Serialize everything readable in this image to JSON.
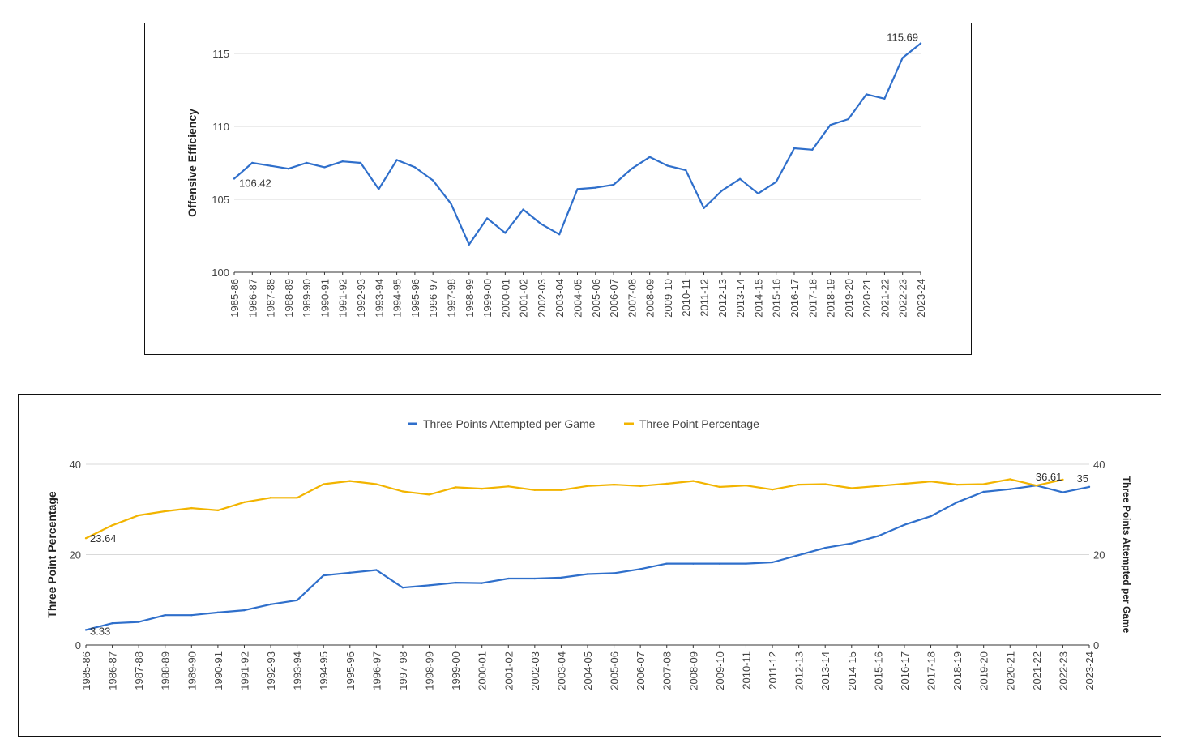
{
  "chart_data": [
    {
      "type": "line",
      "title": "",
      "xlabel": "",
      "ylabel": "Offensive Efficiency",
      "ylim": [
        100,
        115
      ],
      "yticks": [
        100,
        105,
        110,
        115
      ],
      "grid": true,
      "legend": "none",
      "categories": [
        "1985-86",
        "1986-87",
        "1987-88",
        "1988-89",
        "1989-90",
        "1990-91",
        "1991-92",
        "1992-93",
        "1993-94",
        "1994-95",
        "1995-96",
        "1996-97",
        "1997-98",
        "1998-99",
        "1999-00",
        "2000-01",
        "2001-02",
        "2002-03",
        "2003-04",
        "2004-05",
        "2005-06",
        "2006-07",
        "2007-08",
        "2008-09",
        "2009-10",
        "2010-11",
        "2011-12",
        "2012-13",
        "2013-14",
        "2014-15",
        "2015-16",
        "2016-17",
        "2017-18",
        "2018-19",
        "2019-20",
        "2020-21",
        "2021-22",
        "2022-23",
        "2023-24"
      ],
      "series": [
        {
          "color": "#2f6fcb",
          "values": [
            106.42,
            107.5,
            107.3,
            107.1,
            107.5,
            107.2,
            107.6,
            107.5,
            105.7,
            107.7,
            107.2,
            106.3,
            104.7,
            101.9,
            103.7,
            102.7,
            104.3,
            103.3,
            102.6,
            105.7,
            105.8,
            106.0,
            107.1,
            107.9,
            107.3,
            107.0,
            104.4,
            105.6,
            106.4,
            105.4,
            106.2,
            108.5,
            108.4,
            110.1,
            110.5,
            112.2,
            111.9,
            114.7,
            115.69
          ]
        }
      ],
      "data_labels": [
        "106.42",
        "115.69"
      ]
    },
    {
      "type": "line",
      "title": "",
      "xlabel": "",
      "ylabel_left": "Three Point Percentage",
      "ylabel_right": "Three Points Attempted per Game",
      "ylim_left": [
        0,
        40
      ],
      "ylim_right": [
        0,
        40
      ],
      "yticks": [
        0,
        20,
        40
      ],
      "grid": true,
      "legend": "top",
      "categories": [
        "1985-86",
        "1986-87",
        "1987-88",
        "1988-89",
        "1989-90",
        "1990-91",
        "1991-92",
        "1992-93",
        "1993-94",
        "1994-95",
        "1995-96",
        "1996-97",
        "1997-98",
        "1998-99",
        "1999-00",
        "2000-01",
        "2001-02",
        "2002-03",
        "2003-04",
        "2004-05",
        "2005-06",
        "2006-07",
        "2007-08",
        "2008-09",
        "2009-10",
        "2010-11",
        "2011-12",
        "2012-13",
        "2013-14",
        "2014-15",
        "2015-16",
        "2016-17",
        "2017-18",
        "2018-19",
        "2019-20",
        "2020-21",
        "2021-22",
        "2022-23",
        "2023-24"
      ],
      "series": [
        {
          "name": "Three Points Attempted per Game",
          "color": "#2f6fcb",
          "axis": "right",
          "values": [
            3.33,
            4.8,
            5.1,
            6.6,
            6.6,
            7.2,
            7.7,
            9.0,
            9.9,
            15.4,
            16.0,
            16.6,
            12.7,
            13.2,
            13.8,
            13.7,
            14.7,
            14.7,
            14.9,
            15.7,
            15.9,
            16.8,
            18.0,
            18.0,
            18.0,
            18.0,
            18.3,
            19.9,
            21.5,
            22.5,
            24.1,
            26.6,
            28.5,
            31.6,
            33.9,
            34.5,
            35.3,
            33.8,
            35
          ]
        },
        {
          "name": "Three Point Percentage",
          "color": "#f2b400",
          "axis": "left",
          "values": [
            23.64,
            26.5,
            28.7,
            29.6,
            30.3,
            29.8,
            31.6,
            32.6,
            32.6,
            35.6,
            36.3,
            35.6,
            34.0,
            33.3,
            34.9,
            34.6,
            35.1,
            34.3,
            34.3,
            35.2,
            35.5,
            35.2,
            35.7,
            36.3,
            35.0,
            35.3,
            34.4,
            35.5,
            35.6,
            34.7,
            35.2,
            35.7,
            36.2,
            35.5,
            35.6,
            36.7,
            35.3,
            36.61,
            null
          ]
        }
      ],
      "data_labels": [
        "23.64",
        "3.33",
        "36.61",
        "35"
      ]
    }
  ]
}
